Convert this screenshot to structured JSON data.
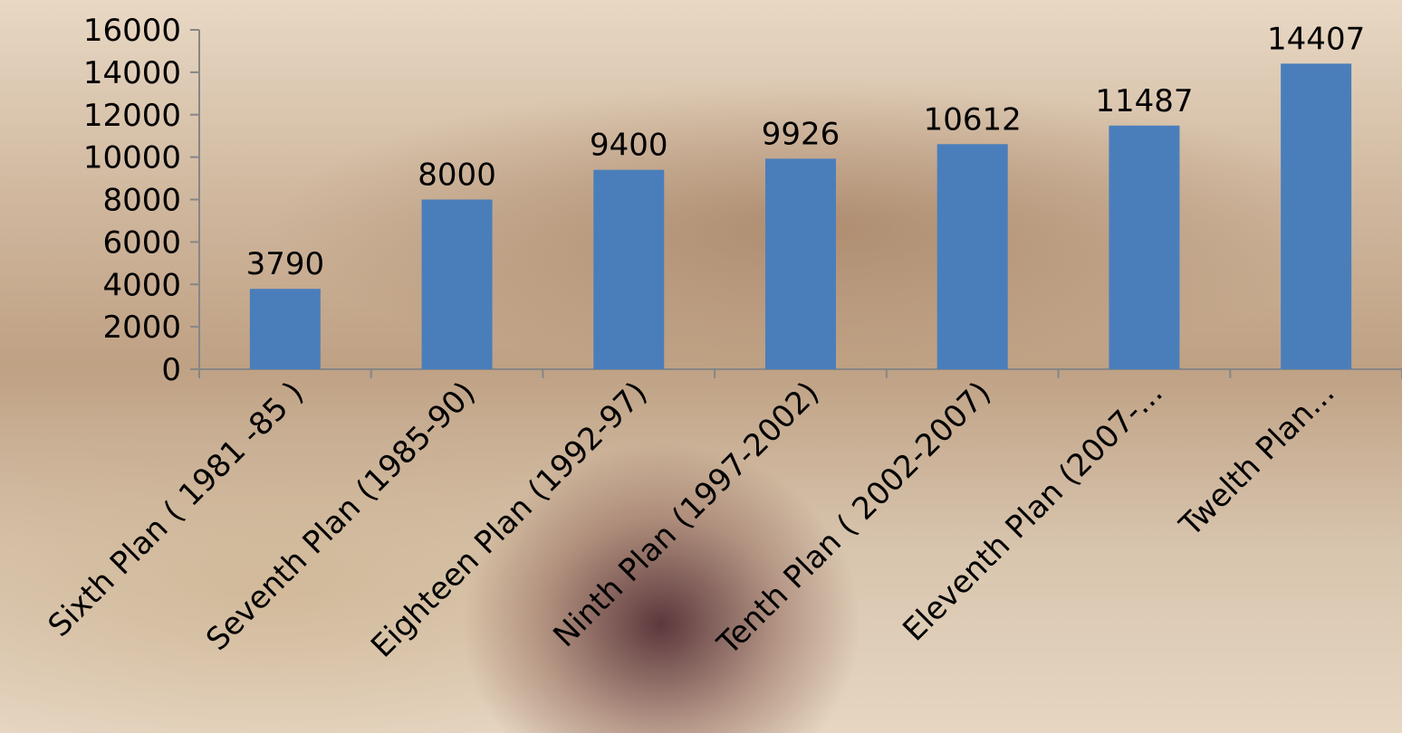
{
  "chart_data": {
    "type": "bar",
    "categories": [
      "Sixth Plan ( 1981 -85 )",
      "Seventh Plan (1985-90)",
      "Eighteen Plan (1992-97)",
      "Ninth Plan (1997-2002)",
      "Tenth Plan ( 2002-2007)",
      "Eleventh Plan (2007-...",
      "Twelth Plan..."
    ],
    "values": [
      3790,
      8000,
      9400,
      9926,
      10612,
      11487,
      14407
    ],
    "color": "#4a7ebb",
    "ylim": [
      0,
      16000
    ],
    "yticks": [
      0,
      2000,
      4000,
      6000,
      8000,
      10000,
      12000,
      14000,
      16000
    ],
    "grid": false
  }
}
